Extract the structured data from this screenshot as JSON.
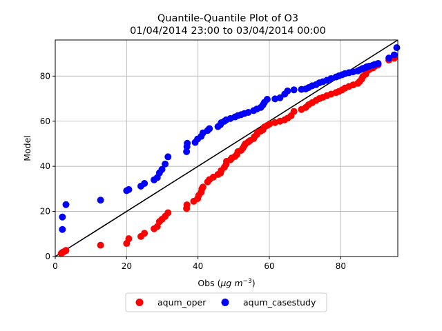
{
  "chart_data": {
    "type": "scatter",
    "title_line1": "Quantile-Quantile Plot of O3",
    "title_line2": "01/04/2014 23:00 to 03/04/2014 00:00",
    "xlabel_prefix": "Obs (",
    "xlabel_unit_mu": "μg",
    "xlabel_unit_m": "m",
    "xlabel_unit_exp": "−3",
    "xlabel_suffix": ")",
    "ylabel": "Model",
    "xlim": [
      0,
      96
    ],
    "ylim": [
      0,
      96
    ],
    "x_ticks": [
      0,
      20,
      40,
      60,
      80
    ],
    "y_ticks": [
      0,
      20,
      40,
      60,
      80
    ],
    "grid": true,
    "legend_position": "below",
    "reference_line": {
      "x": [
        0,
        96
      ],
      "y": [
        0,
        96
      ],
      "color": "#000000"
    },
    "series": [
      {
        "name": "aqum_oper",
        "color": "#ff0000",
        "points": [
          [
            1.7,
            1.4
          ],
          [
            2.1,
            1.9
          ],
          [
            2.6,
            2.3
          ],
          [
            3.0,
            2.7
          ],
          [
            12.7,
            5.0
          ],
          [
            20.0,
            5.8
          ],
          [
            20.6,
            7.9
          ],
          [
            24.0,
            8.9
          ],
          [
            25.0,
            10.3
          ],
          [
            27.7,
            12.3
          ],
          [
            28.6,
            13.3
          ],
          [
            29.2,
            15.5
          ],
          [
            29.9,
            16.5
          ],
          [
            30.8,
            17.8
          ],
          [
            31.6,
            19.4
          ],
          [
            36.8,
            21.3
          ],
          [
            36.9,
            22.9
          ],
          [
            38.8,
            24.5
          ],
          [
            39.9,
            25.7
          ],
          [
            40.2,
            27.1
          ],
          [
            40.9,
            28.5
          ],
          [
            41.1,
            30.0
          ],
          [
            41.4,
            30.8
          ],
          [
            42.7,
            33.1
          ],
          [
            43.2,
            34.1
          ],
          [
            44.3,
            35.2
          ],
          [
            45.6,
            36.4
          ],
          [
            46.3,
            37.0
          ],
          [
            46.5,
            38.1
          ],
          [
            47.4,
            39.6
          ],
          [
            47.9,
            40.9
          ],
          [
            48.0,
            42.2
          ],
          [
            49.1,
            42.9
          ],
          [
            49.5,
            43.7
          ],
          [
            50.4,
            44.4
          ],
          [
            50.9,
            45.2
          ],
          [
            51.2,
            46.5
          ],
          [
            52.1,
            47.1
          ],
          [
            52.6,
            48.1
          ],
          [
            53.0,
            49.2
          ],
          [
            53.3,
            50.0
          ],
          [
            54.1,
            50.8
          ],
          [
            54.6,
            51.4
          ],
          [
            55.6,
            52.3
          ],
          [
            55.8,
            53.1
          ],
          [
            56.5,
            54.1
          ],
          [
            56.7,
            55.0
          ],
          [
            57.6,
            55.6
          ],
          [
            58.2,
            56.2
          ],
          [
            58.6,
            57.4
          ],
          [
            59.4,
            58.1
          ],
          [
            60.1,
            58.8
          ],
          [
            61.6,
            59.4
          ],
          [
            63.0,
            60.0
          ],
          [
            64.3,
            60.6
          ],
          [
            65.1,
            61.3
          ],
          [
            66.1,
            62.4
          ],
          [
            66.9,
            64.3
          ],
          [
            69.0,
            65.2
          ],
          [
            70.2,
            66.1
          ],
          [
            71.0,
            67.3
          ],
          [
            72.0,
            68.2
          ],
          [
            73.1,
            69.2
          ],
          [
            74.0,
            70.0
          ],
          [
            75.0,
            70.6
          ],
          [
            76.1,
            71.3
          ],
          [
            77.3,
            72.0
          ],
          [
            78.7,
            72.7
          ],
          [
            79.5,
            73.2
          ],
          [
            80.4,
            73.9
          ],
          [
            81.2,
            74.7
          ],
          [
            82.3,
            75.4
          ],
          [
            83.5,
            76.1
          ],
          [
            84.8,
            76.8
          ],
          [
            85.3,
            77.6
          ],
          [
            85.9,
            78.7
          ],
          [
            86.2,
            79.8
          ],
          [
            87.0,
            80.8
          ],
          [
            87.3,
            82.0
          ],
          [
            88.0,
            82.9
          ],
          [
            89.0,
            83.6
          ],
          [
            89.6,
            84.4
          ],
          [
            90.5,
            85.0
          ],
          [
            93.5,
            87.1
          ],
          [
            95.0,
            87.9
          ]
        ]
      },
      {
        "name": "aqum_casestudy",
        "color": "#0000ff",
        "points": [
          [
            2.0,
            12.0
          ],
          [
            2.0,
            17.5
          ],
          [
            3.0,
            23.0
          ],
          [
            12.7,
            25.0
          ],
          [
            20.0,
            29.2
          ],
          [
            20.6,
            29.7
          ],
          [
            24.0,
            31.2
          ],
          [
            25.0,
            32.4
          ],
          [
            27.7,
            34.0
          ],
          [
            28.6,
            35.0
          ],
          [
            29.2,
            37.1
          ],
          [
            29.9,
            38.6
          ],
          [
            30.8,
            41.0
          ],
          [
            31.6,
            44.2
          ],
          [
            36.8,
            46.5
          ],
          [
            36.9,
            48.7
          ],
          [
            37.0,
            50.2
          ],
          [
            39.2,
            50.6
          ],
          [
            39.9,
            52.1
          ],
          [
            40.9,
            53.3
          ],
          [
            41.4,
            54.8
          ],
          [
            42.7,
            55.9
          ],
          [
            43.2,
            56.7
          ],
          [
            45.6,
            57.6
          ],
          [
            46.3,
            58.5
          ],
          [
            46.5,
            59.3
          ],
          [
            47.4,
            60.0
          ],
          [
            47.9,
            60.6
          ],
          [
            49.1,
            61.2
          ],
          [
            50.4,
            61.9
          ],
          [
            51.2,
            62.5
          ],
          [
            52.1,
            62.9
          ],
          [
            53.0,
            63.4
          ],
          [
            54.1,
            63.9
          ],
          [
            55.6,
            64.7
          ],
          [
            56.5,
            65.4
          ],
          [
            57.6,
            66.1
          ],
          [
            58.2,
            67.2
          ],
          [
            58.6,
            68.3
          ],
          [
            59.4,
            69.7
          ],
          [
            61.6,
            69.9
          ],
          [
            63.0,
            70.4
          ],
          [
            64.3,
            72.0
          ],
          [
            65.1,
            73.4
          ],
          [
            66.9,
            73.9
          ],
          [
            69.0,
            74.1
          ],
          [
            70.2,
            74.3
          ],
          [
            71.0,
            74.9
          ],
          [
            72.0,
            75.7
          ],
          [
            73.1,
            76.2
          ],
          [
            74.0,
            77.0
          ],
          [
            75.0,
            77.5
          ],
          [
            76.1,
            78.1
          ],
          [
            77.3,
            78.9
          ],
          [
            78.7,
            79.6
          ],
          [
            79.5,
            80.1
          ],
          [
            80.4,
            80.6
          ],
          [
            81.2,
            81.1
          ],
          [
            82.3,
            81.5
          ],
          [
            83.5,
            81.9
          ],
          [
            84.8,
            82.3
          ],
          [
            85.3,
            82.7
          ],
          [
            85.9,
            83.1
          ],
          [
            86.2,
            83.4
          ],
          [
            87.0,
            83.8
          ],
          [
            87.3,
            84.1
          ],
          [
            88.0,
            84.4
          ],
          [
            89.0,
            84.8
          ],
          [
            89.6,
            85.2
          ],
          [
            90.5,
            85.6
          ],
          [
            93.5,
            88.0
          ],
          [
            95.0,
            89.4
          ],
          [
            95.7,
            92.6
          ]
        ]
      }
    ]
  }
}
